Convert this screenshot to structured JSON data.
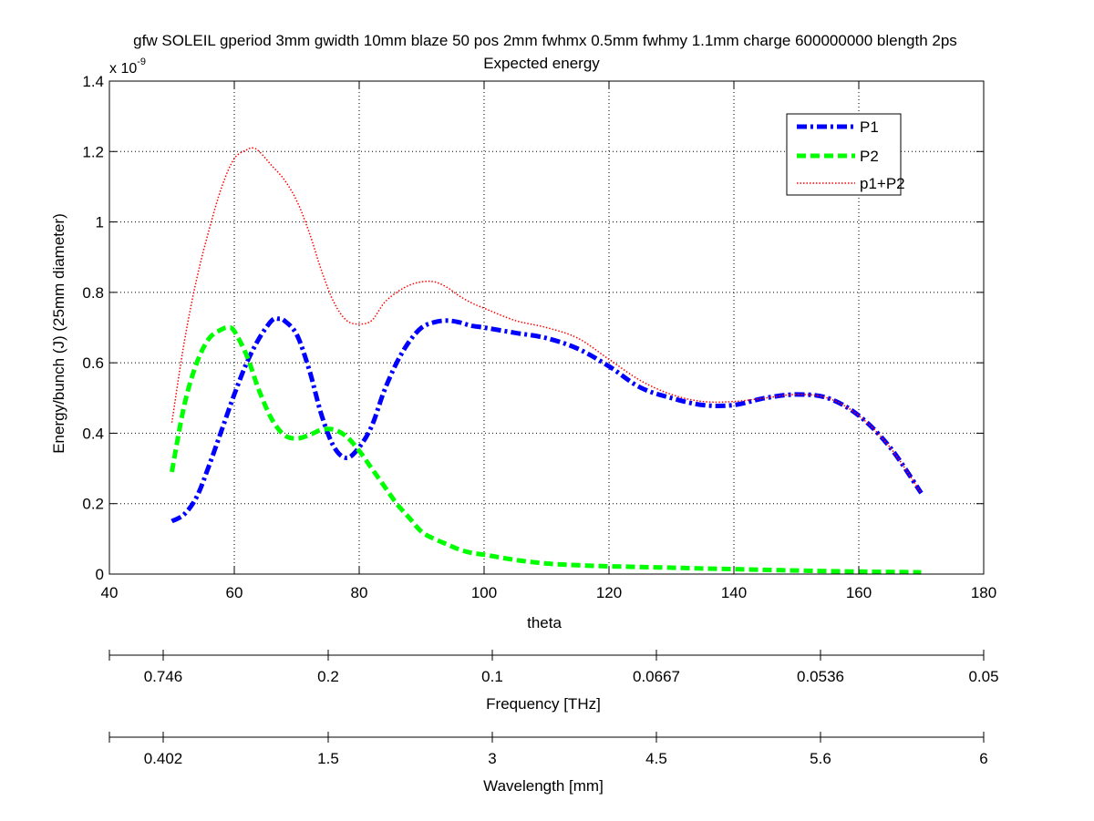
{
  "chart_data": {
    "type": "line",
    "title": "gfw SOLEIL gperiod 3mm gwidth 10mm blaze 50 pos 2mm fwhmx 0.5mm fwhmy 1.1mm charge 600000000 blength 2ps",
    "subtitle": "Expected energy",
    "xlabel": "theta",
    "ylabel": "Energy/bunch (J) (25mm diameter)",
    "y_exponent_base": "x 10",
    "y_exponent_power": "-9",
    "xlim": [
      40,
      180
    ],
    "ylim": [
      0,
      1.4
    ],
    "x_ticks": [
      40,
      60,
      80,
      100,
      120,
      140,
      160,
      180
    ],
    "x_tick_labels": [
      "40",
      "60",
      "80",
      "100",
      "120",
      "140",
      "160",
      "180"
    ],
    "y_ticks": [
      0,
      0.2,
      0.4,
      0.6,
      0.8,
      1.0,
      1.2,
      1.4
    ],
    "y_tick_labels": [
      "0",
      "0.2",
      "0.4",
      "0.6",
      "0.8",
      "1",
      "1.2",
      "1.4"
    ],
    "grid": true,
    "legend_position": "top-right",
    "series": [
      {
        "name": "P1",
        "color": "#0000ff",
        "style": "dash-dot",
        "x": [
          50,
          52,
          54,
          56,
          58,
          60,
          62,
          64,
          66,
          67,
          68,
          70,
          72,
          74,
          76,
          78,
          80,
          82,
          84,
          86,
          88,
          90,
          92,
          94,
          96,
          98,
          100,
          105,
          110,
          115,
          120,
          125,
          130,
          135,
          140,
          145,
          150,
          155,
          160,
          165,
          170
        ],
        "values": [
          0.15,
          0.17,
          0.22,
          0.31,
          0.41,
          0.51,
          0.6,
          0.67,
          0.72,
          0.725,
          0.72,
          0.68,
          0.58,
          0.45,
          0.36,
          0.33,
          0.36,
          0.42,
          0.52,
          0.6,
          0.66,
          0.7,
          0.715,
          0.72,
          0.715,
          0.705,
          0.7,
          0.685,
          0.67,
          0.64,
          0.59,
          0.53,
          0.5,
          0.48,
          0.48,
          0.5,
          0.51,
          0.5,
          0.45,
          0.36,
          0.23
        ]
      },
      {
        "name": "P2",
        "color": "#00ff00",
        "style": "dashed",
        "x": [
          50,
          52,
          54,
          56,
          58,
          59,
          60,
          62,
          64,
          66,
          68,
          70,
          72,
          74,
          76,
          78,
          80,
          82,
          84,
          86,
          88,
          90,
          92,
          94,
          96,
          98,
          100,
          105,
          110,
          115,
          120,
          130,
          140,
          150,
          160,
          170
        ],
        "values": [
          0.29,
          0.48,
          0.6,
          0.67,
          0.695,
          0.7,
          0.69,
          0.62,
          0.52,
          0.44,
          0.395,
          0.385,
          0.395,
          0.41,
          0.41,
          0.39,
          0.35,
          0.3,
          0.25,
          0.2,
          0.16,
          0.12,
          0.1,
          0.085,
          0.07,
          0.06,
          0.055,
          0.04,
          0.03,
          0.025,
          0.022,
          0.018,
          0.014,
          0.01,
          0.007,
          0.005
        ]
      },
      {
        "name": "p1+P2",
        "color": "#ff0000",
        "style": "dotted",
        "x": [
          50,
          52,
          54,
          56,
          58,
          60,
          62,
          63,
          64,
          66,
          68,
          70,
          72,
          74,
          76,
          78,
          80,
          82,
          84,
          86,
          88,
          90,
          92,
          94,
          96,
          98,
          100,
          105,
          110,
          115,
          120,
          125,
          130,
          135,
          140,
          145,
          150,
          155,
          160,
          165,
          170
        ],
        "values": [
          0.43,
          0.66,
          0.84,
          0.98,
          1.1,
          1.18,
          1.205,
          1.21,
          1.2,
          1.16,
          1.12,
          1.06,
          0.97,
          0.86,
          0.77,
          0.72,
          0.71,
          0.72,
          0.77,
          0.8,
          0.82,
          0.83,
          0.83,
          0.815,
          0.79,
          0.77,
          0.755,
          0.72,
          0.7,
          0.67,
          0.61,
          0.55,
          0.51,
          0.49,
          0.49,
          0.5,
          0.51,
          0.5,
          0.45,
          0.36,
          0.23
        ]
      }
    ],
    "secondary_axes": [
      {
        "label": "Frequency [THz]",
        "tick_labels": [
          "0.746",
          "0.2",
          "0.1",
          "0.0667",
          "0.0536",
          "0.05"
        ]
      },
      {
        "label": "Wavelength [mm]",
        "tick_labels": [
          "0.402",
          "1.5",
          "3",
          "4.5",
          "5.6",
          "6"
        ]
      }
    ]
  }
}
